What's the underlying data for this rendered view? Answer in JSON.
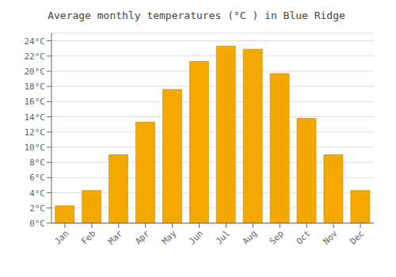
{
  "chart_data": {
    "type": "bar",
    "title": "Average monthly temperatures (°C ) in Blue Ridge",
    "categories": [
      "Jan",
      "Feb",
      "Mar",
      "Apr",
      "May",
      "Jun",
      "Jul",
      "Aug",
      "Sep",
      "Oct",
      "Nov",
      "Dec"
    ],
    "values": [
      2.3,
      4.3,
      9.0,
      13.3,
      17.6,
      21.3,
      23.3,
      22.9,
      19.7,
      13.8,
      9.0,
      4.3
    ],
    "color": "#F5A800",
    "ylim": [
      0,
      25
    ],
    "yticks": [
      {
        "value": 0,
        "label": "0°C"
      },
      {
        "value": 2,
        "label": "2°C"
      },
      {
        "value": 4,
        "label": "4°C"
      },
      {
        "value": 6,
        "label": "6°C"
      },
      {
        "value": 8,
        "label": "8°C"
      },
      {
        "value": 10,
        "label": "10°C"
      },
      {
        "value": 12,
        "label": "12°C"
      },
      {
        "value": 14,
        "label": "14°C"
      },
      {
        "value": 16,
        "label": "16°C"
      },
      {
        "value": 18,
        "label": "18°C"
      },
      {
        "value": 20,
        "label": "20°C"
      },
      {
        "value": 22,
        "label": "22°C"
      },
      {
        "value": 24,
        "label": "24°C"
      }
    ],
    "grid": true
  }
}
